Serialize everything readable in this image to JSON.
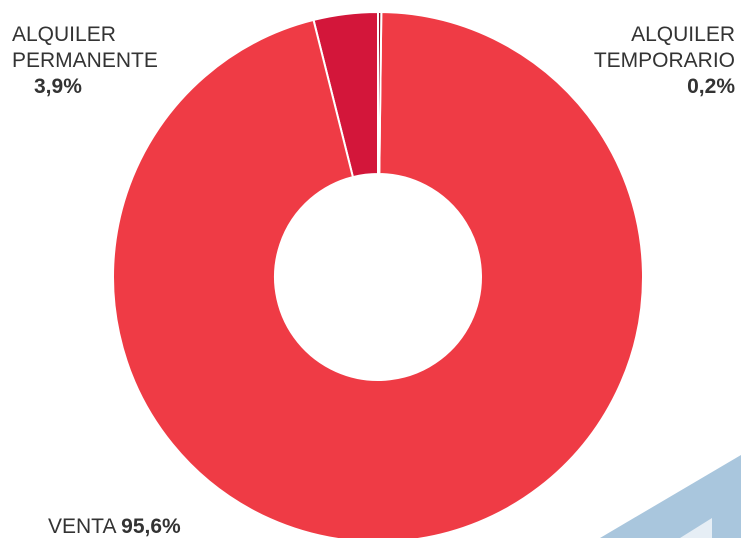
{
  "chart_data": {
    "type": "donut",
    "categories": [
      "ALQUILER TEMPORARIO",
      "VENTA",
      "ALQUILER PERMANENTE"
    ],
    "values": [
      0.2,
      95.6,
      3.9
    ],
    "value_labels": [
      "0,2%",
      "95,6%",
      "3,9%"
    ],
    "colors": [
      "#8e1128",
      "#ef3b45",
      "#d3163a"
    ]
  }
}
